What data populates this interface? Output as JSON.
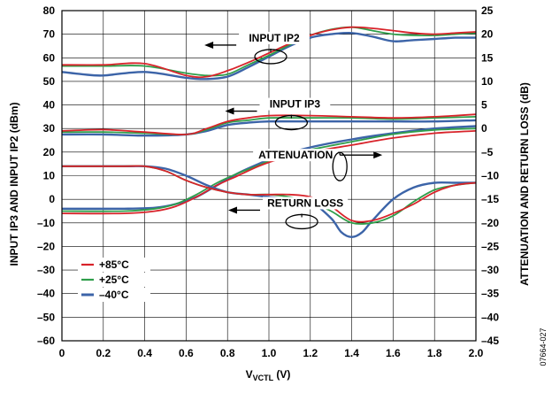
{
  "chart_data": {
    "type": "line",
    "x_axis": {
      "label_main": "V",
      "label_sub": "VCTL",
      "label_unit": " (V)",
      "range": [
        0,
        2.0
      ],
      "ticks": [
        "0",
        "0.2",
        "0.4",
        "0.6",
        "0.8",
        "1.0",
        "1.2",
        "1.4",
        "1.6",
        "1.8",
        "2.0"
      ]
    },
    "y_left": {
      "label": "INPUT IP3 AND INPUT IP2 (dBm)",
      "range": [
        -60,
        80
      ],
      "ticks": [
        "80",
        "70",
        "60",
        "50",
        "40",
        "30",
        "20",
        "10",
        "0",
        "–10",
        "–20",
        "–30",
        "–40",
        "–50",
        "–60"
      ]
    },
    "y_right": {
      "label": "ATTENUATION AND RETURN LOSS (dB)",
      "range": [
        -45,
        25
      ],
      "ticks": [
        "25",
        "20",
        "15",
        "10",
        "5",
        "0",
        "–5",
        "–10",
        "–15",
        "–20",
        "–25",
        "–30",
        "–35",
        "–40",
        "–45"
      ]
    },
    "grid": true,
    "legend": {
      "position": "bottom-left",
      "entries": [
        {
          "label": "+85°C",
          "color": "#d8232a"
        },
        {
          "label": "+25°C",
          "color": "#2f9e4a"
        },
        {
          "label": "–40°C",
          "color": "#3c64a8"
        }
      ]
    },
    "annotations": [
      {
        "text": "INPUT IP2",
        "arrow": "left",
        "x": 1.0,
        "y": 62
      },
      {
        "text": "INPUT IP3",
        "arrow": "left",
        "x": 1.1,
        "y": 34
      },
      {
        "text": "ATTENUATION",
        "arrow": "right",
        "x": 1.3,
        "y": 12
      },
      {
        "text": "RETURN LOSS",
        "arrow": "left",
        "x": 1.15,
        "y": -8
      }
    ],
    "figure_id": "07664-027",
    "groups": [
      {
        "name": "INPUT IP2",
        "axis": "left",
        "series": [
          {
            "name": "+85°C",
            "x": [
              0,
              0.2,
              0.4,
              0.6,
              0.7,
              0.8,
              0.9,
              1.0,
              1.1,
              1.2,
              1.3,
              1.4,
              1.5,
              1.6,
              1.7,
              1.8,
              1.9,
              2.0
            ],
            "y": [
              57,
              57,
              57.5,
              52.5,
              52,
              54.5,
              58,
              62,
              66,
              69.5,
              71.8,
              73,
              72.5,
              71.5,
              70.5,
              70,
              70.5,
              71
            ]
          },
          {
            "name": "+25°C",
            "x": [
              0,
              0.2,
              0.4,
              0.6,
              0.7,
              0.8,
              0.9,
              1.0,
              1.1,
              1.2,
              1.3,
              1.4,
              1.5,
              1.6,
              1.7,
              1.8,
              1.9,
              2.0
            ],
            "y": [
              56.5,
              56.5,
              56.5,
              53.5,
              52.5,
              53,
              57,
              61,
              65.5,
              69.5,
              72,
              73,
              71.5,
              70,
              69.5,
              69.5,
              70,
              70.5
            ]
          },
          {
            "name": "–40°C",
            "x": [
              0,
              0.1,
              0.2,
              0.4,
              0.6,
              0.7,
              0.8,
              0.9,
              1.0,
              1.1,
              1.2,
              1.3,
              1.4,
              1.5,
              1.6,
              1.7,
              1.8,
              1.9,
              2.0
            ],
            "y": [
              54,
              53,
              52.5,
              54,
              51.5,
              51,
              52,
              56,
              60.5,
              65,
              68.5,
              70,
              70.5,
              69,
              67,
              67.5,
              68,
              68.5,
              68.5
            ]
          }
        ]
      },
      {
        "name": "INPUT IP3",
        "axis": "left",
        "series": [
          {
            "name": "+85°C",
            "x": [
              0,
              0.2,
              0.4,
              0.6,
              0.7,
              0.8,
              0.9,
              1.0,
              1.2,
              1.4,
              1.6,
              1.8,
              2.0
            ],
            "y": [
              29,
              29.5,
              28.5,
              27.5,
              30,
              33,
              34.5,
              35.5,
              35.5,
              35,
              34.5,
              35,
              36
            ]
          },
          {
            "name": "+25°C",
            "x": [
              0,
              0.2,
              0.4,
              0.6,
              0.7,
              0.8,
              0.9,
              1.0,
              1.2,
              1.4,
              1.6,
              1.8,
              2.0
            ],
            "y": [
              28.5,
              28.5,
              28,
              27.5,
              29.5,
              32.5,
              33.5,
              34.5,
              34.5,
              34.5,
              34,
              34.5,
              35
            ]
          },
          {
            "name": "–40°C",
            "x": [
              0,
              0.2,
              0.4,
              0.6,
              0.7,
              0.8,
              0.9,
              1.0,
              1.2,
              1.4,
              1.6,
              1.8,
              2.0
            ],
            "y": [
              27.5,
              27.5,
              27,
              27.5,
              29,
              31.5,
              32.5,
              33,
              33,
              33,
              33,
              33,
              33.5
            ]
          }
        ]
      },
      {
        "name": "ATTENUATION",
        "axis": "right",
        "series": [
          {
            "name": "+85°C",
            "x": [
              0,
              0.3,
              0.45,
              0.55,
              0.65,
              0.75,
              0.85,
              0.95,
              1.05,
              1.2,
              1.4,
              1.6,
              1.8,
              2.0
            ],
            "y": [
              -18,
              -18,
              -17.5,
              -16.5,
              -14.5,
              -12,
              -10,
              -8,
              -6.5,
              -5,
              -3.5,
              -2,
              -1,
              -0.5
            ]
          },
          {
            "name": "+25°C",
            "x": [
              0,
              0.3,
              0.45,
              0.55,
              0.65,
              0.75,
              0.85,
              0.95,
              1.05,
              1.2,
              1.4,
              1.6,
              1.8,
              2.0
            ],
            "y": [
              -17.5,
              -17.5,
              -17,
              -16,
              -14,
              -11.5,
              -9.5,
              -7.8,
              -6,
              -4.5,
              -2.8,
              -1.2,
              -0.3,
              0
            ]
          },
          {
            "name": "–40°C",
            "x": [
              0,
              0.3,
              0.45,
              0.55,
              0.65,
              0.75,
              0.85,
              0.95,
              1.05,
              1.2,
              1.4,
              1.6,
              1.8,
              2.0
            ],
            "y": [
              -17,
              -17,
              -16.8,
              -16,
              -14.5,
              -12,
              -9.5,
              -7.5,
              -5.8,
              -4,
              -2.3,
              -1,
              0,
              0.5
            ]
          }
        ]
      },
      {
        "name": "RETURN LOSS",
        "axis": "right",
        "series": [
          {
            "name": "+85°C",
            "x": [
              0,
              0.3,
              0.4,
              0.5,
              0.6,
              0.7,
              0.8,
              0.9,
              1.0,
              1.1,
              1.2,
              1.3,
              1.4,
              1.5,
              1.6,
              1.7,
              1.8,
              1.9,
              2.0
            ],
            "y": [
              -8,
              -8,
              -8,
              -9,
              -11,
              -12.5,
              -13.5,
              -14,
              -14,
              -14,
              -14.5,
              -16.5,
              -19.5,
              -19.5,
              -18,
              -16,
              -13.5,
              -12,
              -11.5
            ]
          },
          {
            "name": "+25°C",
            "x": [
              0,
              0.3,
              0.4,
              0.5,
              0.6,
              0.7,
              0.8,
              0.9,
              1.0,
              1.1,
              1.2,
              1.3,
              1.4,
              1.5,
              1.6,
              1.7,
              1.8,
              1.9,
              2.0
            ],
            "y": [
              -8,
              -8,
              -8,
              -9,
              -11,
              -12.5,
              -13.5,
              -14,
              -14,
              -14.5,
              -15.5,
              -17.5,
              -20,
              -20,
              -18.5,
              -15.5,
              -13,
              -12,
              -11.5
            ]
          },
          {
            "name": "–40°C",
            "x": [
              0,
              0.3,
              0.4,
              0.5,
              0.6,
              0.7,
              0.8,
              0.9,
              1.0,
              1.1,
              1.2,
              1.3,
              1.35,
              1.4,
              1.45,
              1.5,
              1.6,
              1.7,
              1.8,
              1.9,
              2.0
            ],
            "y": [
              -8,
              -8,
              -8,
              -8.5,
              -10,
              -12,
              -13.5,
              -14,
              -14.5,
              -15,
              -15.5,
              -19,
              -22,
              -23,
              -22,
              -19.5,
              -15,
              -12.5,
              -11.5,
              -11.5,
              -11.5
            ]
          }
        ]
      }
    ]
  }
}
